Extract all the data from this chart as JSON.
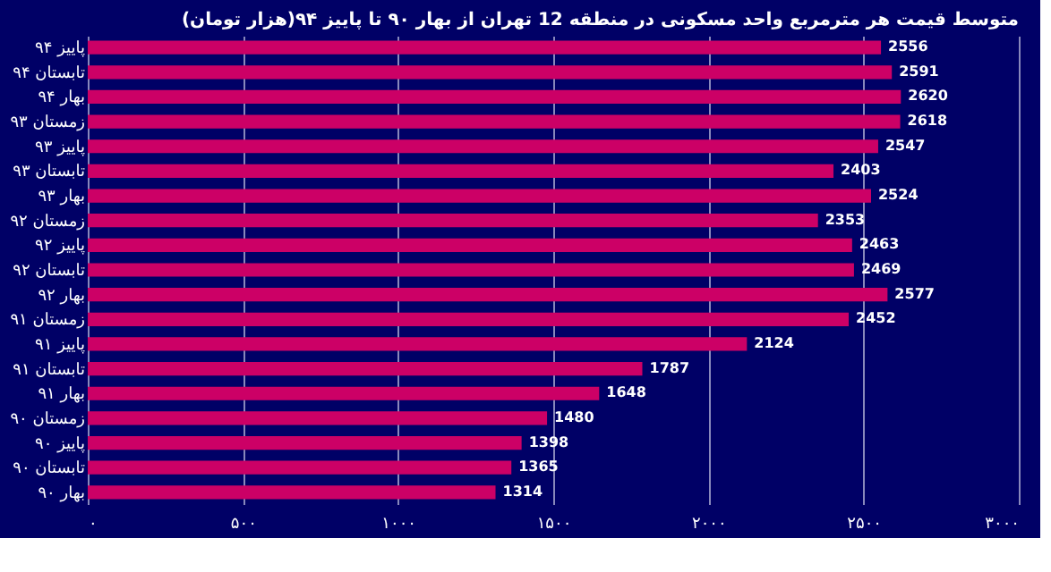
{
  "chart_data": {
    "type": "bar",
    "orientation": "horizontal",
    "title": "متوسط قیمت هر مترمربع واحد مسکونی در منطقه 12 تهران از بهار ۹۰ تا پاییز ۹۴(هزار تومان)",
    "categories": [
      "پاییز ۹۴",
      "تابستان ۹۴",
      "بهار ۹۴",
      "زمستان ۹۳",
      "پاییز ۹۳",
      "تابستان ۹۳",
      "بهار ۹۳",
      "زمستان ۹۲",
      "پاییز ۹۲",
      "تابستان ۹۲",
      "بهار ۹۲",
      "زمستان ۹۱",
      "پاییز ۹۱",
      "تابستان ۹۱",
      "بهار ۹۱",
      "زمستان ۹۰",
      "پاییز ۹۰",
      "تابستان ۹۰",
      "بهار ۹۰"
    ],
    "values": [
      2556,
      2591,
      2620,
      2618,
      2547,
      2403,
      2524,
      2353,
      2463,
      2469,
      2577,
      2452,
      2124,
      1787,
      1648,
      1480,
      1398,
      1365,
      1314
    ],
    "color": "#cc0066",
    "xlim": [
      0,
      3000
    ],
    "xticks": [
      {
        "value": 0,
        "label": "۰"
      },
      {
        "value": 500,
        "label": "۵۰۰"
      },
      {
        "value": 1000,
        "label": "۱۰۰۰"
      },
      {
        "value": 1500,
        "label": "۱۵۰۰"
      },
      {
        "value": 2000,
        "label": "۲۰۰۰"
      },
      {
        "value": 2500,
        "label": "۲۵۰۰"
      },
      {
        "value": 3000,
        "label": "۳۰۰۰"
      }
    ],
    "grid": "x",
    "data_labels": true
  }
}
